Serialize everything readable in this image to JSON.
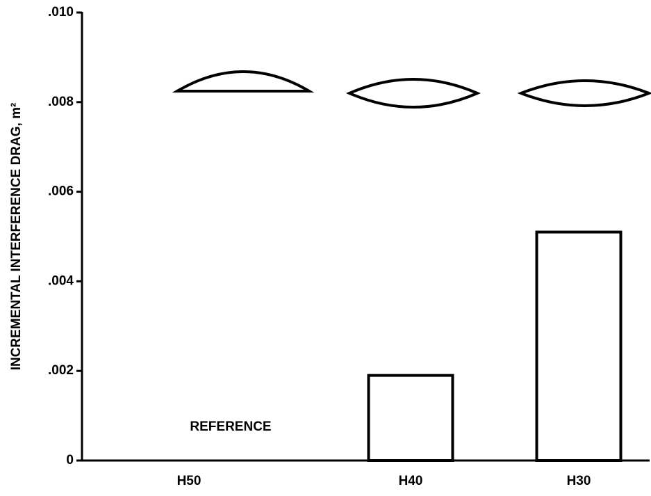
{
  "chart_data": {
    "type": "bar",
    "ylabel": "INCREMENTAL INTERFERENCE DRAG, m²",
    "categories": [
      "H50",
      "H40",
      "H30"
    ],
    "values": [
      0,
      0.0019,
      0.0051
    ],
    "color": "#ffffff",
    "ylim": [
      0,
      0.01
    ],
    "yticks": [
      0,
      {
        "value": 0.002,
        "label": ".002"
      },
      {
        "value": 0.004,
        "label": ".004"
      },
      {
        "value": 0.006,
        "label": ".006"
      },
      {
        "value": 0.008,
        "label": ".008"
      },
      {
        "value": 0.01,
        "label": ".010"
      }
    ],
    "annotation": "REFERENCE",
    "grid": false
  }
}
